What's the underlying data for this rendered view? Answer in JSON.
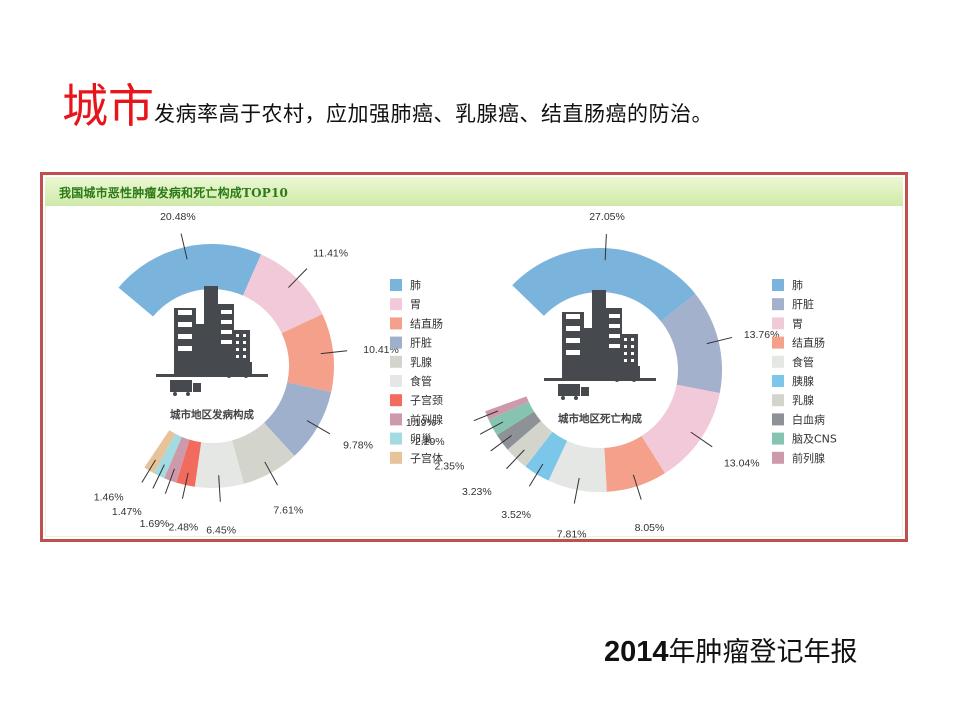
{
  "headline": {
    "emphasis": "城市",
    "text": "发病率高于农村，应加强肺癌、乳腺癌、结直肠癌的防治。"
  },
  "panel": {
    "title": "我国城市恶性肿瘤发病和死亡构成TOP10"
  },
  "footer": {
    "year": "2014",
    "text": "年肿瘤登记年报"
  },
  "chart_data": [
    {
      "type": "pie",
      "subtype": "donut",
      "title": "城市地区发病构成",
      "center_label": "城市地区发病构成",
      "center_icon": "city-buildings-trucks-icon",
      "unit": "%",
      "legend_position": "right",
      "categories": [
        "肺",
        "胃",
        "结直肠",
        "肝脏",
        "乳腺",
        "食管",
        "子宫颈",
        "前列腺",
        "卵巢",
        "子宫体"
      ],
      "values": [
        20.48,
        11.41,
        10.41,
        9.78,
        7.61,
        6.45,
        2.48,
        1.69,
        1.47,
        1.46
      ],
      "labels": [
        "20.48%",
        "11.41%",
        "10.41%",
        "9.78%",
        "7.61%",
        "6.45%",
        "2.48%",
        "1.69%",
        "1.47%",
        "1.46%"
      ],
      "colors": [
        "#7ab3dc",
        "#f2c9d8",
        "#f4a08a",
        "#9fb0cc",
        "#d3d5cc",
        "#e4e7e3",
        "#f26c5e",
        "#cd9aab",
        "#a3dbe3",
        "#e6c398"
      ]
    },
    {
      "type": "pie",
      "subtype": "donut",
      "title": "城市地区死亡构成",
      "center_label": "城市地区死亡构成",
      "center_icon": "city-buildings-trucks-icon",
      "unit": "%",
      "legend_position": "right",
      "categories": [
        "肺",
        "肝脏",
        "胃",
        "结直肠",
        "食管",
        "胰腺",
        "乳腺",
        "白血病",
        "脑及CNS",
        "前列腺"
      ],
      "values": [
        27.05,
        13.76,
        13.04,
        8.05,
        7.81,
        3.52,
        3.23,
        2.35,
        2.29,
        1.19
      ],
      "labels": [
        "27.05%",
        "13.76%",
        "13.04%",
        "8.05%",
        "7.81%",
        "3.52%",
        "3.23%",
        "2.35%",
        "2.29%",
        "1.19%"
      ],
      "colors": [
        "#7ab3dc",
        "#a3b1cc",
        "#f2c9d8",
        "#f4a08a",
        "#e4e7e3",
        "#7cc7e9",
        "#d3d5cc",
        "#8e9196",
        "#86c3b1",
        "#cd9aab"
      ]
    }
  ]
}
